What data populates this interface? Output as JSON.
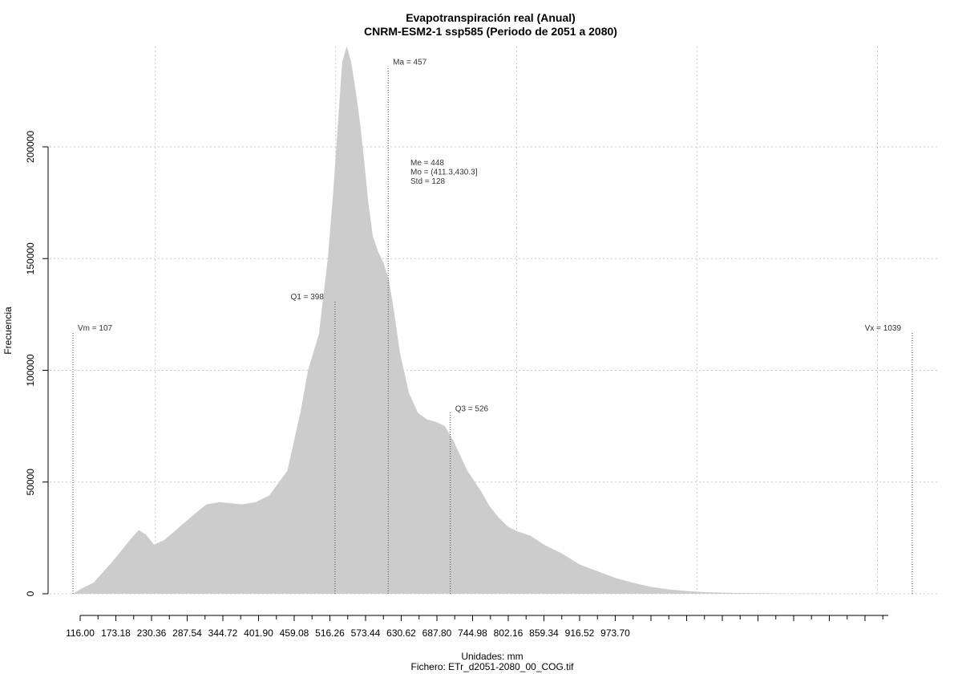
{
  "chart_data": {
    "type": "area",
    "title": "Evapotranspiración real (Anual)",
    "subtitle": "CNRM-ESM2-1 ssp585 (Periodo de 2051 a 2080)",
    "xlabel": "Unidades: mm",
    "ylabel": "Frecuencia",
    "footer": "Fichero: ETr_d2051-2080_00_COG.tif",
    "xlim": [
      107,
      1039
    ],
    "ylim": [
      0,
      250000
    ],
    "grid": true,
    "x_ticks": [
      116.0,
      173.18,
      230.36,
      287.54,
      344.72,
      401.9,
      459.08,
      516.26,
      573.44,
      630.62,
      687.8,
      744.98,
      802.16,
      859.34,
      916.52,
      973.7
    ],
    "x_tick_labels": [
      "116.00",
      "173.18",
      "230.36",
      "287.54",
      "344.72",
      "401.90",
      "459.08",
      "516.26",
      "573.44",
      "630.62",
      "687.80",
      "744.98",
      "802.16",
      "859.34",
      "916.52",
      "973.70"
    ],
    "y_ticks": [
      0,
      50000,
      100000,
      150000,
      200000
    ],
    "y_tick_labels": [
      "0",
      "50000",
      "100000",
      "150000",
      "200000"
    ],
    "x": [
      107,
      115,
      130,
      150,
      170,
      180,
      188,
      197,
      208,
      220,
      240,
      255,
      270,
      283,
      295,
      310,
      325,
      345,
      360,
      368,
      374,
      380,
      390,
      396,
      402,
      406,
      411,
      416,
      421,
      426,
      430,
      435,
      440,
      446,
      452,
      458,
      464,
      470,
      480,
      490,
      500,
      510,
      520,
      530,
      545,
      560,
      570,
      580,
      590,
      600,
      615,
      630,
      650,
      660,
      670,
      690,
      710,
      730,
      750,
      770,
      790,
      810,
      840,
      870,
      900,
      930,
      960,
      990,
      1020,
      1039
    ],
    "y": [
      0,
      2000,
      5000,
      14000,
      24000,
      28500,
      26500,
      22000,
      24000,
      28000,
      35000,
      40000,
      41000,
      40500,
      40000,
      41000,
      44000,
      55000,
      82000,
      100000,
      108000,
      116000,
      150000,
      180000,
      215000,
      238000,
      245000,
      238000,
      225000,
      210000,
      195000,
      175000,
      160000,
      153000,
      148000,
      140000,
      125000,
      108000,
      90000,
      81000,
      78000,
      77000,
      75000,
      68000,
      55000,
      46000,
      39000,
      34000,
      30000,
      28000,
      26000,
      22000,
      18000,
      15500,
      13000,
      10000,
      7000,
      4800,
      3000,
      1900,
      1200,
      700,
      400,
      250,
      150,
      80,
      30,
      10,
      0,
      0
    ],
    "annotations": [
      {
        "label": "Vm = 107",
        "x": 107,
        "y": 117000,
        "anchor": "start"
      },
      {
        "label": "Q1 = 398",
        "x": 398,
        "y": 131000,
        "anchor": "end"
      },
      {
        "label": "Ma = 457",
        "x": 457,
        "y": 236000,
        "anchor": "start"
      },
      {
        "label": "Q3 = 526",
        "x": 526,
        "y": 81000,
        "anchor": "start"
      },
      {
        "label": "Vx = 1039",
        "x": 1039,
        "y": 117000,
        "anchor": "end"
      }
    ],
    "stats": [
      "Me = 448",
      "Mo = (411.3,430.3]",
      "Std = 128"
    ],
    "colors": {
      "fill": "#cccccc",
      "grid": "#c8c8c8",
      "axis": "#000000",
      "vline": "#444444"
    }
  }
}
